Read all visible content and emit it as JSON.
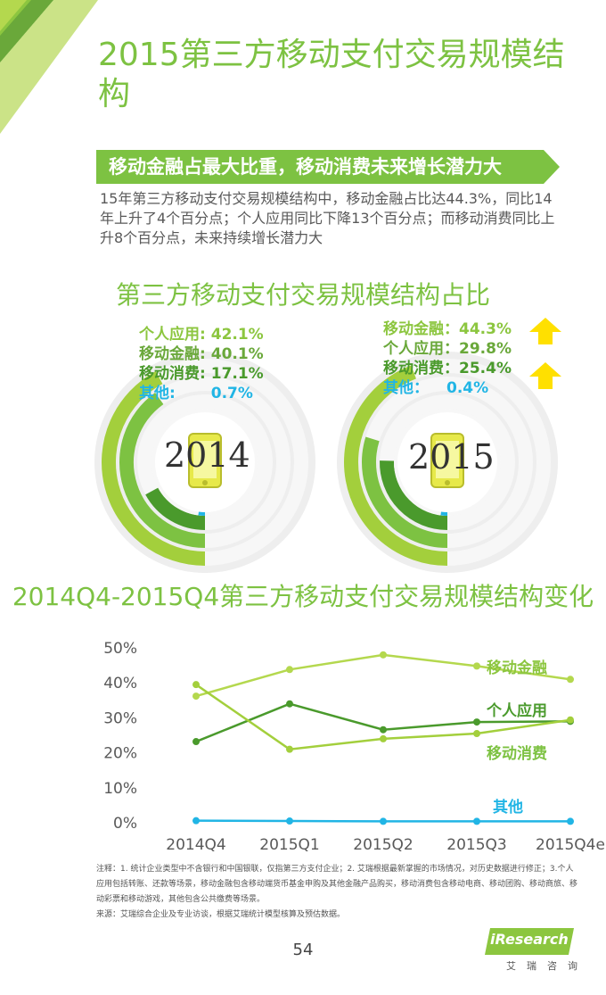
{
  "page": {
    "title": "2015第三方移动支付交易规模结构",
    "banner": "移动金融占最大比重，移动消费未来增长潜力大",
    "description": "15年第三方移动支付交易规模结构中，移动金融占比达44.3%，同比14年上升了4个百分点；个人应用同比下降13个百分点；而移动消费同比上升8个百分点，未来持续增长潜力大",
    "notes": "注释：1. 统计企业类型中不含银行和中国银联，仅指第三方支付企业；2. 艾瑞根据最新掌握的市场情况，对历史数据进行修正；3.个人应用包括转账、还款等场景，移动金融包含移动端货币基金申购及其他金融产品购买，移动消费包含移动电商、移动团购、移动商旅、移动彩票和移动游戏，其他包含公共缴费等场景。",
    "source": "来源：艾瑞综合企业及专业访谈，根据艾瑞统计模型核算及预估数据。",
    "page_number": "54",
    "logo": "iResearch",
    "logo_cn": "艾瑞咨询"
  },
  "colors": {
    "green_light": "#a3cf3c",
    "green_mid": "#7dc242",
    "green_dark": "#4a9a2c",
    "blue": "#21b5e5"
  },
  "icons": {
    "arrow_up": "arrow-up-icon",
    "phone": "phone-icon"
  },
  "chart_data": [
    {
      "type": "pie",
      "title": "第三方移动支付交易规模结构占比",
      "year": "2014",
      "slices": [
        {
          "name": "个人应用:",
          "label": "42.1%",
          "value": 42.1
        },
        {
          "name": "移动金融:",
          "label": "40.1%",
          "value": 40.1
        },
        {
          "name": "移动消费:",
          "label": "17.1%",
          "value": 17.1
        },
        {
          "name": "其他:",
          "label": "0.7%",
          "value": 0.7
        }
      ]
    },
    {
      "type": "pie",
      "year": "2015",
      "slices": [
        {
          "name": "移动金融：",
          "label": "44.3%",
          "value": 44.3,
          "trend": "up"
        },
        {
          "name": "个人应用：",
          "label": "29.8%",
          "value": 29.8
        },
        {
          "name": "移动消费：",
          "label": "25.4%",
          "value": 25.4,
          "trend": "up"
        },
        {
          "name": "其他：",
          "label": "0.4%",
          "value": 0.4
        }
      ]
    },
    {
      "type": "line",
      "title": "2014Q4-2015Q4第三方移动支付交易规模结构变化",
      "categories": [
        "2014Q4",
        "2015Q1",
        "2015Q2",
        "2015Q3",
        "2015Q4e"
      ],
      "yticks": [
        "0%",
        "10%",
        "20%",
        "30%",
        "40%",
        "50%"
      ],
      "ylim": [
        0,
        50
      ],
      "series": [
        {
          "name": "移动金融",
          "values": [
            36.2,
            43.8,
            48.0,
            44.8,
            41.0
          ]
        },
        {
          "name": "个人应用",
          "values": [
            23.2,
            34.0,
            26.6,
            28.8,
            29.0
          ]
        },
        {
          "name": "移动消费",
          "values": [
            39.5,
            21.0,
            24.0,
            25.5,
            29.4
          ]
        },
        {
          "name": "其他",
          "values": [
            0.6,
            0.5,
            0.4,
            0.4,
            0.4
          ]
        }
      ]
    }
  ]
}
